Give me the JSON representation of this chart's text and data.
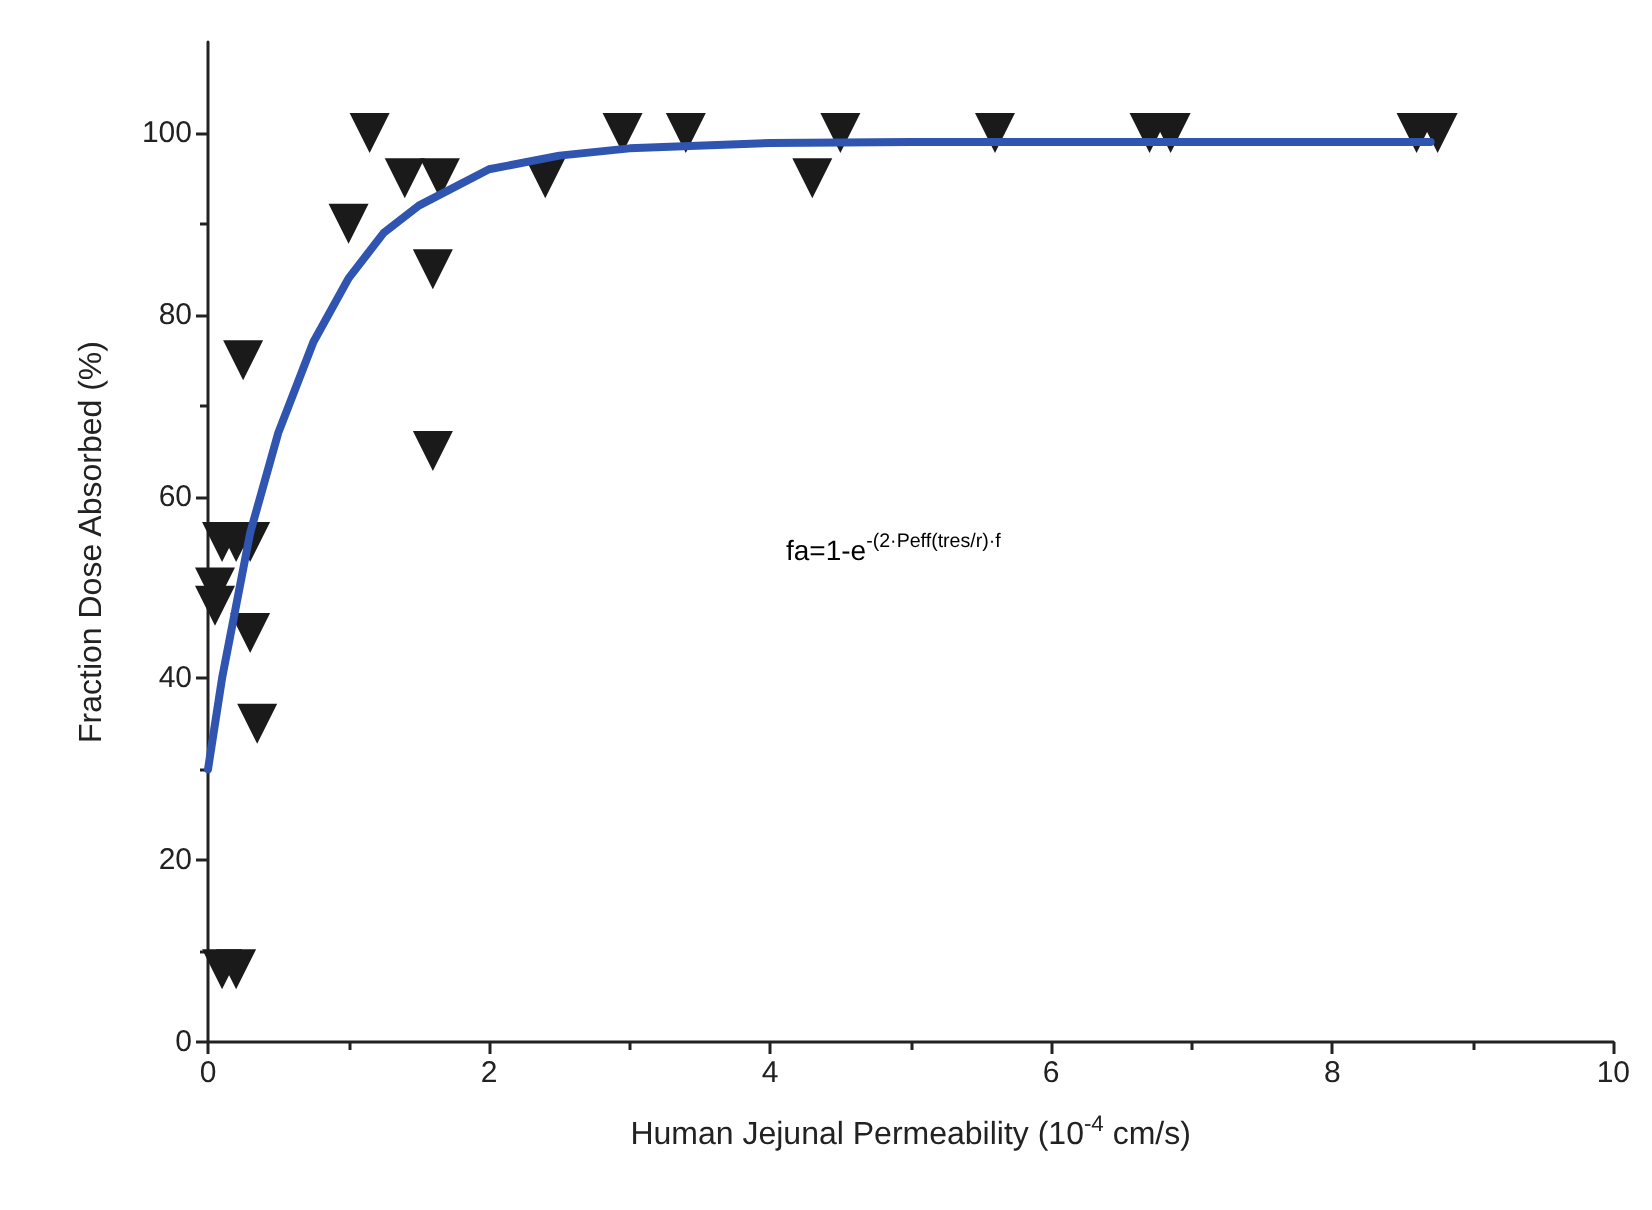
{
  "chart_data": {
    "type": "scatter",
    "xlabel": "Human Jejunal Permeability (10$^{-4}$ cm/s)",
    "ylabel": "Fraction Dose Absorbed (%)",
    "xlim": [
      0,
      10
    ],
    "xticks": [
      0,
      2,
      4,
      6,
      8,
      10
    ],
    "ylim": [
      0,
      110
    ],
    "yticks": [
      0,
      20,
      40,
      60,
      80,
      100
    ],
    "grid": false,
    "annotations": [
      "fa=1-e$^{-(2·Peff(tres/r)·f}$"
    ],
    "series": [
      {
        "marker": "triangle",
        "color": "#1a1a1a",
        "x": [
          0.05,
          0.05,
          0.1,
          0.2,
          0.3,
          0.25,
          0.3,
          0.35,
          0.1,
          0.2,
          1.0,
          1.15,
          1.4,
          1.65,
          1.6,
          1.6,
          2.4,
          2.95,
          3.4,
          4.3,
          4.5,
          5.6,
          6.7,
          6.85,
          8.6,
          8.75
        ],
        "values": [
          48,
          50,
          55,
          55,
          55,
          75,
          45,
          35,
          8,
          8,
          90,
          100,
          95,
          95,
          85,
          65,
          95,
          100,
          100,
          95,
          100,
          100,
          100,
          100,
          100,
          100
        ]
      },
      {
        "type": "line",
        "marker": "none",
        "color": "#2f55b0",
        "line_style": "solid",
        "x": [
          0,
          0.1,
          0.2,
          0.3,
          0.5,
          0.75,
          1,
          1.25,
          1.5,
          2,
          2.5,
          3,
          4,
          5,
          6,
          7,
          8,
          8.7
        ],
        "values": [
          30,
          40,
          48,
          56,
          67,
          77,
          84,
          89,
          92,
          96,
          97.5,
          98.3,
          98.9,
          99,
          99,
          99,
          99,
          99
        ]
      }
    ]
  }
}
